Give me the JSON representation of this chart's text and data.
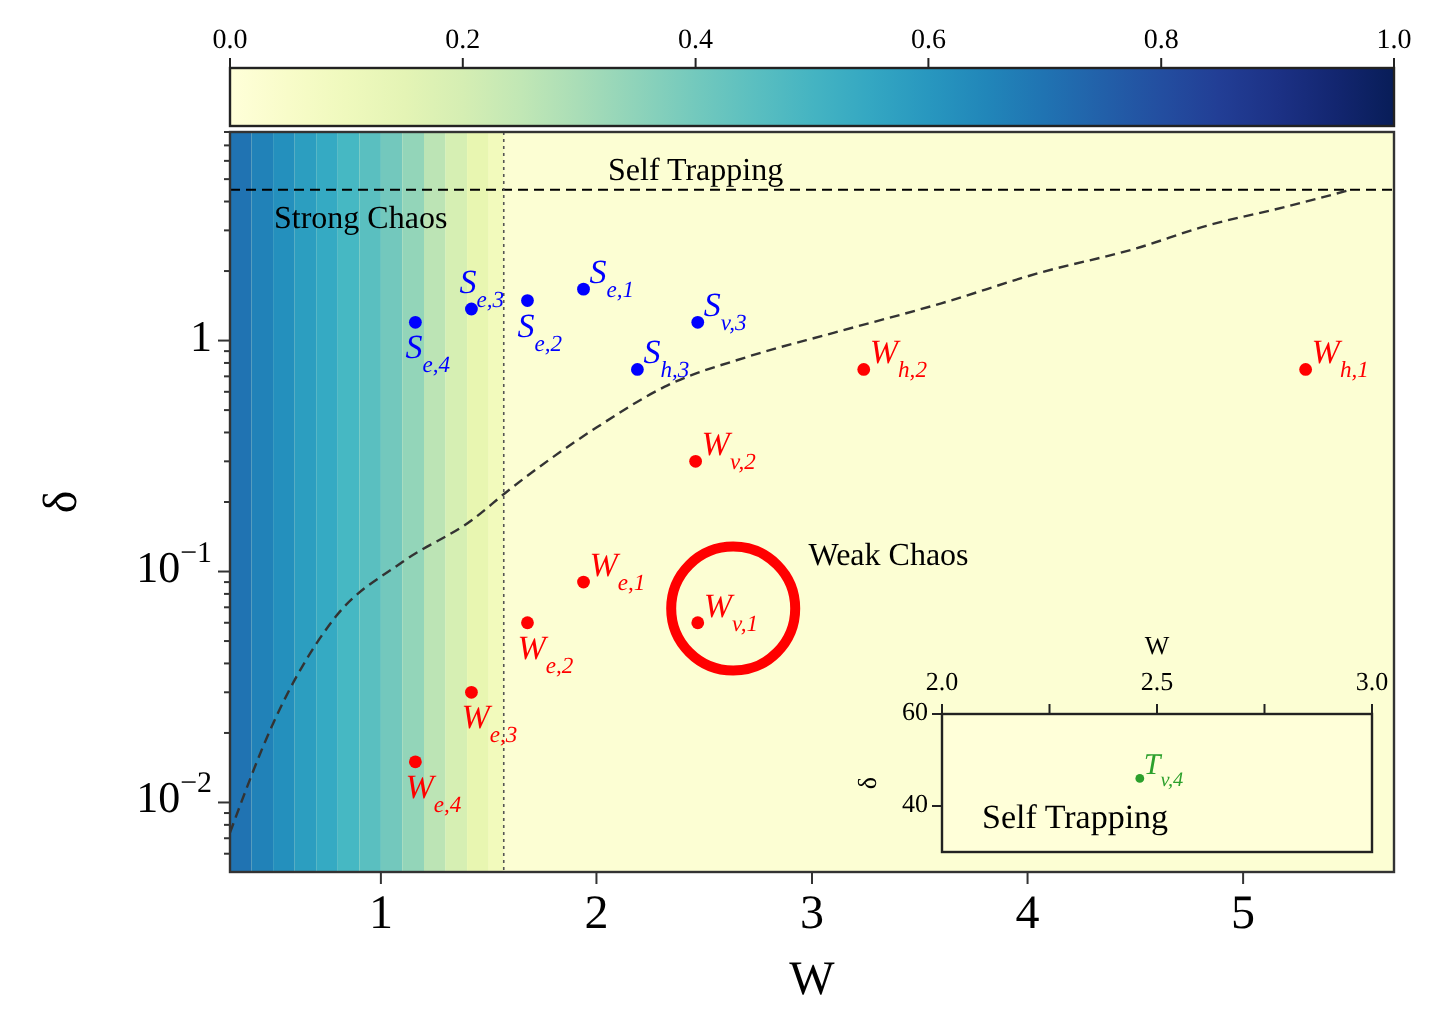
{
  "chart_data": [
    {
      "type": "scatter",
      "xlabel": "W",
      "ylabel": "δ",
      "log": "y",
      "marker": "circle",
      "xlim": [
        0.3,
        5.7
      ],
      "xticks": [
        1,
        2,
        3,
        4,
        5
      ],
      "ylim": [
        0.005,
        8
      ],
      "yticks": [
        {
          "value": 0.006,
          "label": null
        },
        {
          "value": 0.007,
          "label": null
        },
        {
          "value": 0.008,
          "label": null
        },
        {
          "value": 0.009,
          "label": null
        },
        {
          "value": 0.01,
          "label": "10$^{−2}$"
        },
        {
          "value": 0.02,
          "label": null
        },
        {
          "value": 0.03,
          "label": null
        },
        {
          "value": 0.04,
          "label": null
        },
        {
          "value": 0.05,
          "label": null
        },
        {
          "value": 0.06,
          "label": null
        },
        {
          "value": 0.07,
          "label": null
        },
        {
          "value": 0.08,
          "label": null
        },
        {
          "value": 0.09,
          "label": null
        },
        {
          "value": 0.1,
          "label": "10$^{−1}$"
        },
        {
          "value": 0.2,
          "label": null
        },
        {
          "value": 0.3,
          "label": null
        },
        {
          "value": 0.4,
          "label": null
        },
        {
          "value": 0.5,
          "label": null
        },
        {
          "value": 0.6,
          "label": null
        },
        {
          "value": 0.7,
          "label": null
        },
        {
          "value": 0.8,
          "label": null
        },
        {
          "value": 0.9,
          "label": null
        },
        {
          "value": 1,
          "label": "1"
        },
        {
          "value": 2,
          "label": null
        },
        {
          "value": 3,
          "label": null
        },
        {
          "value": 4,
          "label": null
        },
        {
          "value": 5,
          "label": null
        },
        {
          "value": 6,
          "label": null
        },
        {
          "value": 7,
          "label": null
        },
        {
          "value": 8,
          "label": null
        }
      ],
      "clim": [
        0,
        1
      ],
      "cticks": [
        {
          "value": 0,
          "label": "0.0"
        },
        {
          "value": 0.2,
          "label": "0.2"
        },
        {
          "value": 0.4,
          "label": "0.4"
        },
        {
          "value": 0.6,
          "label": "0.6"
        },
        {
          "value": 0.8,
          "label": "0.8"
        },
        {
          "value": 1,
          "label": "1.0"
        }
      ],
      "ref_lines": [
        {
          "axis": "y",
          "value": 4.5,
          "label": "Self Trapping",
          "line_style": "dashed",
          "color": "#000000"
        },
        {
          "axis": "x",
          "value": 1.57,
          "line_style": "dotted",
          "color": "#555555"
        }
      ],
      "annotations": [
        "Strong Chaos",
        "Weak Chaos"
      ],
      "bands": [
        {
          "axis": "x",
          "from": 0.3,
          "to": 0.4,
          "color": "#2073b2"
        },
        {
          "axis": "x",
          "from": 0.4,
          "to": 0.5,
          "color": "#2182b8"
        },
        {
          "axis": "x",
          "from": 0.5,
          "to": 0.6,
          "color": "#2490bd"
        },
        {
          "axis": "x",
          "from": 0.6,
          "to": 0.7,
          "color": "#2c9ec0"
        },
        {
          "axis": "x",
          "from": 0.7,
          "to": 0.8,
          "color": "#35aac3"
        },
        {
          "axis": "x",
          "from": 0.8,
          "to": 0.9,
          "color": "#46b8c3"
        },
        {
          "axis": "x",
          "from": 0.9,
          "to": 1.0,
          "color": "#5abfc0"
        },
        {
          "axis": "x",
          "from": 1.0,
          "to": 1.1,
          "color": "#73c8bd"
        },
        {
          "axis": "x",
          "from": 1.1,
          "to": 1.2,
          "color": "#93d5b9"
        },
        {
          "axis": "x",
          "from": 1.2,
          "to": 1.3,
          "color": "#bce4b5"
        },
        {
          "axis": "x",
          "from": 1.3,
          "to": 1.4,
          "color": "#d6efb3"
        },
        {
          "axis": "x",
          "from": 1.4,
          "to": 1.5,
          "color": "#e8f6b1"
        },
        {
          "axis": "x",
          "from": 1.5,
          "to": 1.57,
          "color": "#f2fabc"
        },
        {
          "axis": "x",
          "from": 1.57,
          "to": 5.7,
          "color": "#fcfed3"
        }
      ],
      "series": [
        {
          "type": "line",
          "line_style": "dashed",
          "marker": "none",
          "color": "#333333",
          "x": [
            0.3,
            0.5,
            0.78,
            1.1,
            1.43,
            1.58,
            2.0,
            2.33,
            2.7,
            3.1,
            3.6,
            4.06,
            4.5,
            4.83,
            5.2,
            5.5
          ],
          "values": [
            0.0074,
            0.022,
            0.062,
            0.11,
            0.169,
            0.22,
            0.42,
            0.64,
            0.85,
            1.08,
            1.45,
            1.97,
            2.5,
            3.14,
            3.8,
            4.5
          ]
        },
        {
          "name": "S$_{e,1}$",
          "color": "#0000ff",
          "x": [
            1.94
          ],
          "values": [
            1.67
          ]
        },
        {
          "name": "S$_{e,2}$",
          "color": "#0000ff",
          "x": [
            1.68
          ],
          "values": [
            1.49
          ]
        },
        {
          "name": "S$_{e,3}$",
          "color": "#0000ff",
          "x": [
            1.42
          ],
          "values": [
            1.37
          ]
        },
        {
          "name": "S$_{e,4}$",
          "color": "#0000ff",
          "x": [
            1.16
          ],
          "values": [
            1.2
          ]
        },
        {
          "name": "S$_{v,3}$",
          "color": "#0000ff",
          "x": [
            2.47
          ],
          "values": [
            1.2
          ]
        },
        {
          "name": "S$_{h,3}$",
          "color": "#0000ff",
          "x": [
            2.19
          ],
          "values": [
            0.75
          ]
        },
        {
          "name": "W$_{h,1}$",
          "color": "#ff0000",
          "x": [
            5.29
          ],
          "values": [
            0.75
          ]
        },
        {
          "name": "W$_{h,2}$",
          "color": "#ff0000",
          "x": [
            3.24
          ],
          "values": [
            0.75
          ]
        },
        {
          "name": "W$_{v,2}$",
          "color": "#ff0000",
          "x": [
            2.46
          ],
          "values": [
            0.3
          ]
        },
        {
          "name": "W$_{e,1}$",
          "color": "#ff0000",
          "x": [
            1.94
          ],
          "values": [
            0.09
          ]
        },
        {
          "name": "W$_{e,2}$",
          "color": "#ff0000",
          "x": [
            1.68
          ],
          "values": [
            0.06
          ]
        },
        {
          "name": "W$_{v,1}$",
          "color": "#ff0000",
          "x": [
            2.47
          ],
          "values": [
            0.06
          ]
        },
        {
          "name": "W$_{e,3}$",
          "color": "#ff0000",
          "x": [
            1.42
          ],
          "values": [
            0.03
          ]
        },
        {
          "name": "W$_{e,4}$",
          "color": "#ff0000",
          "x": [
            1.16
          ],
          "values": [
            0.015
          ]
        }
      ]
    },
    {
      "type": "scatter",
      "xlabel": "W",
      "ylabel": "δ",
      "marker": "circle",
      "xlim": [
        2,
        3
      ],
      "xticks": [
        {
          "value": 2,
          "label": "2.0"
        },
        {
          "value": 2.25,
          "label": null
        },
        {
          "value": 2.5,
          "label": "2.5"
        },
        {
          "value": 2.75,
          "label": null
        },
        {
          "value": 3,
          "label": "3.0"
        }
      ],
      "ylim": [
        30,
        60
      ],
      "yticks": [
        40,
        60
      ],
      "annotations": [
        "Self Trapping"
      ],
      "series": [
        {
          "name": "T$_{v,4}$",
          "color": "#2ca02c",
          "x": [
            2.46
          ],
          "values": [
            46
          ]
        }
      ]
    }
  ]
}
